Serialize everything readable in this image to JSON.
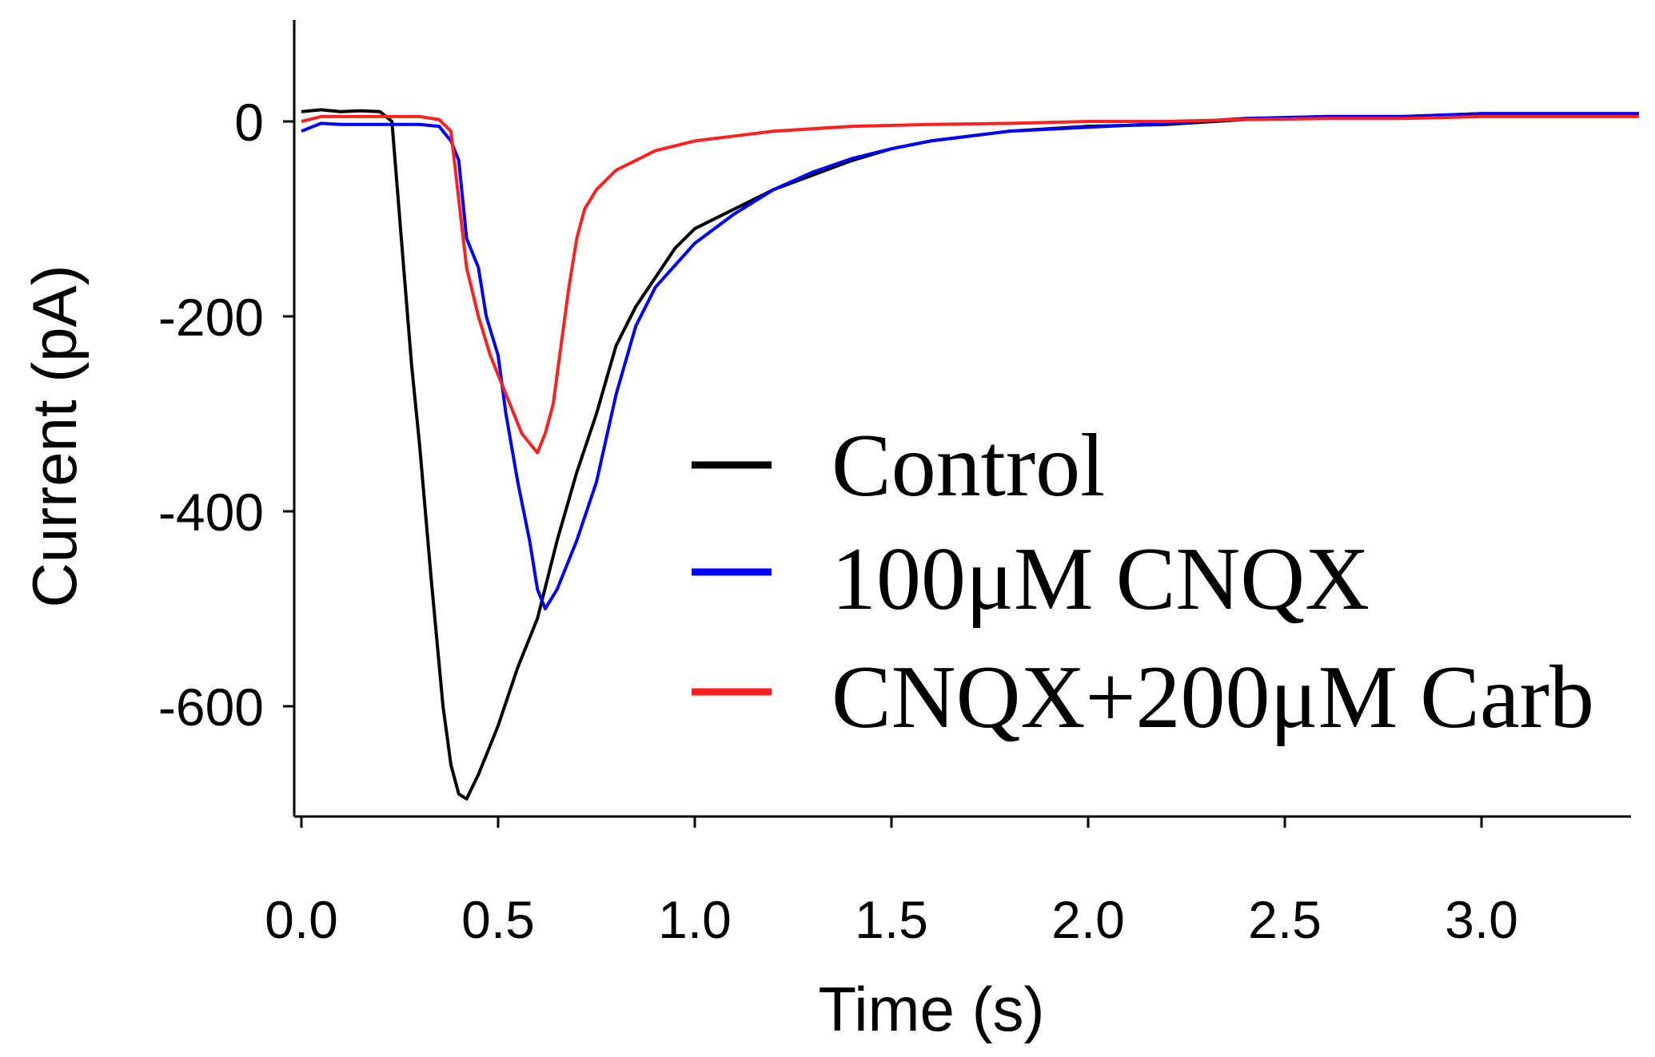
{
  "chart_data": {
    "type": "line",
    "title": "",
    "xlabel": "Time (s)",
    "ylabel": "Current (pA)",
    "xlim": [
      -0.02,
      3.4
    ],
    "ylim": [
      -720,
      100
    ],
    "x_ticks": [
      "0.0",
      "0.5",
      "1.0",
      "1.5",
      "2.0",
      "2.5",
      "3.0"
    ],
    "x_tick_values": [
      0.0,
      0.5,
      1.0,
      1.5,
      2.0,
      2.5,
      3.0
    ],
    "y_ticks": [
      "0",
      "-200",
      "-400",
      "-600"
    ],
    "y_tick_values": [
      0,
      -200,
      -400,
      -600
    ],
    "legend_position": "right",
    "series": [
      {
        "name": "Control",
        "color": "#000000",
        "x": [
          0.0,
          0.05,
          0.1,
          0.15,
          0.2,
          0.23,
          0.26,
          0.28,
          0.3,
          0.33,
          0.36,
          0.38,
          0.4,
          0.42,
          0.45,
          0.48,
          0.5,
          0.55,
          0.6,
          0.65,
          0.7,
          0.75,
          0.8,
          0.85,
          0.9,
          0.95,
          1.0,
          1.1,
          1.2,
          1.3,
          1.4,
          1.5,
          1.6,
          1.7,
          1.8,
          2.0,
          2.2,
          2.4,
          2.6,
          2.8,
          3.0,
          3.2,
          3.4
        ],
        "y": [
          10,
          12,
          10,
          11,
          10,
          0,
          -150,
          -250,
          -330,
          -470,
          -600,
          -660,
          -690,
          -695,
          -670,
          -640,
          -620,
          -560,
          -510,
          -430,
          -360,
          -300,
          -230,
          -190,
          -160,
          -130,
          -110,
          -90,
          -70,
          -55,
          -40,
          -28,
          -20,
          -15,
          -10,
          -5,
          -3,
          2,
          5,
          5,
          8,
          8,
          8
        ]
      },
      {
        "name": "100μM CNQX",
        "color": "#0000ff",
        "x": [
          0.0,
          0.05,
          0.1,
          0.2,
          0.3,
          0.35,
          0.38,
          0.4,
          0.42,
          0.45,
          0.47,
          0.5,
          0.52,
          0.55,
          0.58,
          0.6,
          0.62,
          0.65,
          0.7,
          0.75,
          0.8,
          0.85,
          0.9,
          1.0,
          1.1,
          1.2,
          1.3,
          1.4,
          1.5,
          1.6,
          1.8,
          2.0,
          2.2,
          2.4,
          2.6,
          2.8,
          3.0,
          3.2,
          3.4
        ],
        "y": [
          -10,
          -2,
          -3,
          -3,
          -3,
          -5,
          -20,
          -40,
          -120,
          -150,
          -200,
          -240,
          -300,
          -370,
          -430,
          -480,
          -500,
          -480,
          -430,
          -370,
          -280,
          -210,
          -170,
          -125,
          -95,
          -70,
          -52,
          -38,
          -28,
          -20,
          -10,
          -6,
          -2,
          3,
          5,
          5,
          8,
          8,
          8
        ]
      },
      {
        "name": "CNQX+200μM Carb",
        "color": "#ff2020",
        "x": [
          0.0,
          0.05,
          0.1,
          0.2,
          0.3,
          0.35,
          0.38,
          0.4,
          0.42,
          0.45,
          0.48,
          0.5,
          0.53,
          0.56,
          0.58,
          0.6,
          0.62,
          0.64,
          0.66,
          0.68,
          0.7,
          0.72,
          0.75,
          0.8,
          0.85,
          0.9,
          1.0,
          1.1,
          1.2,
          1.4,
          1.6,
          1.8,
          2.0,
          2.2,
          2.4,
          2.6,
          2.8,
          3.0,
          3.2,
          3.4
        ],
        "y": [
          0,
          5,
          5,
          5,
          5,
          2,
          -10,
          -80,
          -150,
          -200,
          -240,
          -260,
          -290,
          -320,
          -330,
          -340,
          -320,
          -290,
          -230,
          -170,
          -120,
          -90,
          -70,
          -50,
          -40,
          -30,
          -20,
          -15,
          -10,
          -5,
          -3,
          -2,
          0,
          0,
          2,
          3,
          3,
          5,
          5,
          5
        ]
      }
    ]
  }
}
